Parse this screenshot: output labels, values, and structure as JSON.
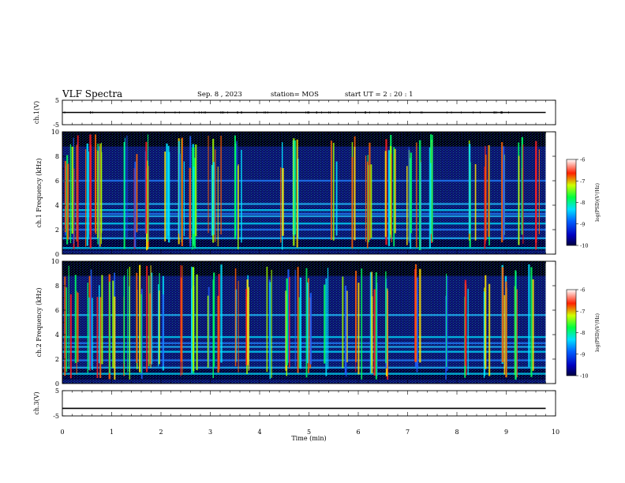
{
  "header": {
    "title": "VLF Spectra",
    "date": "Sep. 8 , 2023",
    "station": "station= MOS",
    "start": "start UT =   2 : 20 : 1"
  },
  "chart_data": [
    {
      "type": "line",
      "panel": "ch1-waveform",
      "ylabel": "ch.1(V)",
      "yticks": [
        "5",
        "-5"
      ],
      "ylim": [
        -5,
        5
      ],
      "xlim": [
        0,
        10
      ],
      "series": [
        {
          "x": [
            0,
            9.8
          ],
          "y": [
            0,
            0
          ]
        }
      ]
    },
    {
      "type": "heatmap",
      "panel": "ch1-spectrogram",
      "ylabel": "ch.1  Frequency (kHz)",
      "yticks": [
        "0",
        "2",
        "4",
        "6",
        "8",
        "10"
      ],
      "ylim": [
        0,
        10
      ],
      "xlim": [
        0,
        10
      ],
      "data_end_min": 9.8,
      "colorbar": {
        "label": "log(PSD)(V²/Hz)",
        "ticks": [
          "-6",
          "-7",
          "-8",
          "-9",
          "-10"
        ],
        "range": [
          -10,
          -6
        ]
      },
      "background_bands_khz": [
        0.5,
        1.3,
        2.0,
        2.5,
        3.1,
        3.3,
        3.6,
        4.1,
        6.0
      ],
      "bursts_min": [
        0.1,
        0.25,
        0.5,
        0.68,
        0.75,
        1.25,
        1.5,
        1.72,
        2.08,
        2.4,
        2.62,
        2.68,
        3.0,
        3.15,
        3.5,
        3.6,
        4.4,
        4.7,
        5.5,
        5.9,
        6.2,
        6.6,
        6.7,
        7.0,
        7.2,
        7.5,
        8.3,
        8.6,
        8.9,
        9.3,
        9.6
      ]
    },
    {
      "type": "heatmap",
      "panel": "ch2-spectrogram",
      "ylabel": "ch.2  Frequency (kHz)",
      "yticks": [
        "0",
        "2",
        "4",
        "6",
        "8",
        "10"
      ],
      "ylim": [
        0,
        10
      ],
      "xlim": [
        0,
        10
      ],
      "data_end_min": 9.8,
      "colorbar": {
        "label": "log(PSD)(V²/Hz)",
        "ticks": [
          "-6",
          "-7",
          "-8",
          "-9",
          "-10"
        ],
        "range": [
          -10,
          -6
        ]
      },
      "background_bands_khz": [
        0.8,
        1.3,
        1.9,
        2.6,
        3.0,
        3.3,
        3.8,
        5.6
      ],
      "bursts_min": [
        0.1,
        0.3,
        0.55,
        0.75,
        1.0,
        1.3,
        1.55,
        1.75,
        2.0,
        2.4,
        2.62,
        2.7,
        3.0,
        3.2,
        3.5,
        3.75,
        4.2,
        4.55,
        4.75,
        5.0,
        5.35,
        5.7,
        6.0,
        6.3,
        6.6,
        7.2,
        7.8,
        8.2,
        8.6,
        8.95,
        9.2,
        9.5
      ]
    },
    {
      "type": "line",
      "panel": "ch3-waveform",
      "ylabel": "ch.3(V)",
      "yticks": [
        "5",
        "-5"
      ],
      "ylim": [
        -5,
        5
      ],
      "xlim": [
        0,
        10
      ],
      "xlabel": "Time  (min)",
      "xticks": [
        "0",
        "1",
        "2",
        "3",
        "4",
        "5",
        "6",
        "7",
        "8",
        "9",
        "10"
      ],
      "series": [
        {
          "x": [
            0,
            9.8
          ],
          "y": [
            -2,
            -2
          ]
        }
      ]
    }
  ]
}
